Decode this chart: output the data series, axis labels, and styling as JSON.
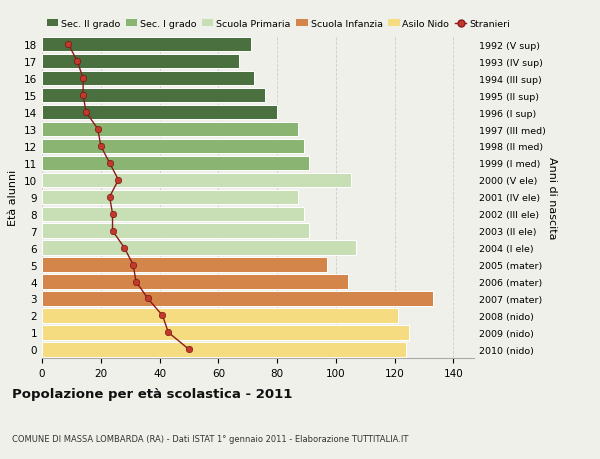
{
  "ages": [
    18,
    17,
    16,
    15,
    14,
    13,
    12,
    11,
    10,
    9,
    8,
    7,
    6,
    5,
    4,
    3,
    2,
    1,
    0
  ],
  "bar_values": [
    71,
    67,
    72,
    76,
    80,
    87,
    89,
    91,
    105,
    87,
    89,
    91,
    107,
    97,
    104,
    133,
    121,
    125,
    124
  ],
  "stranieri_values": [
    9,
    12,
    14,
    14,
    15,
    19,
    20,
    23,
    26,
    23,
    24,
    24,
    28,
    31,
    32,
    36,
    41,
    43,
    50
  ],
  "right_labels": [
    "1992 (V sup)",
    "1993 (IV sup)",
    "1994 (III sup)",
    "1995 (II sup)",
    "1996 (I sup)",
    "1997 (III med)",
    "1998 (II med)",
    "1999 (I med)",
    "2000 (V ele)",
    "2001 (IV ele)",
    "2002 (III ele)",
    "2003 (II ele)",
    "2004 (I ele)",
    "2005 (mater)",
    "2006 (mater)",
    "2007 (mater)",
    "2008 (nido)",
    "2009 (nido)",
    "2010 (nido)"
  ],
  "colors": {
    "sec2": "#4a7040",
    "sec1": "#8ab472",
    "primaria": "#c8deb4",
    "infanzia": "#d4854a",
    "nido": "#f5dc80",
    "stranieri_line": "#8b1a1a",
    "stranieri_dot": "#c0392b"
  },
  "legend_labels": [
    "Sec. II grado",
    "Sec. I grado",
    "Scuola Primaria",
    "Scuola Infanzia",
    "Asilo Nido",
    "Stranieri"
  ],
  "ylabel_left": "Età alunni",
  "ylabel_right": "Anni di nascita",
  "title": "Popolazione per età scolastica - 2011",
  "subtitle": "COMUNE DI MASSA LOMBARDA (RA) - Dati ISTAT 1° gennaio 2011 - Elaborazione TUTTITALIA.IT",
  "xlim": [
    0,
    147
  ],
  "xticks": [
    0,
    20,
    40,
    60,
    80,
    100,
    120,
    140
  ],
  "background_color": "#f0f0eb"
}
